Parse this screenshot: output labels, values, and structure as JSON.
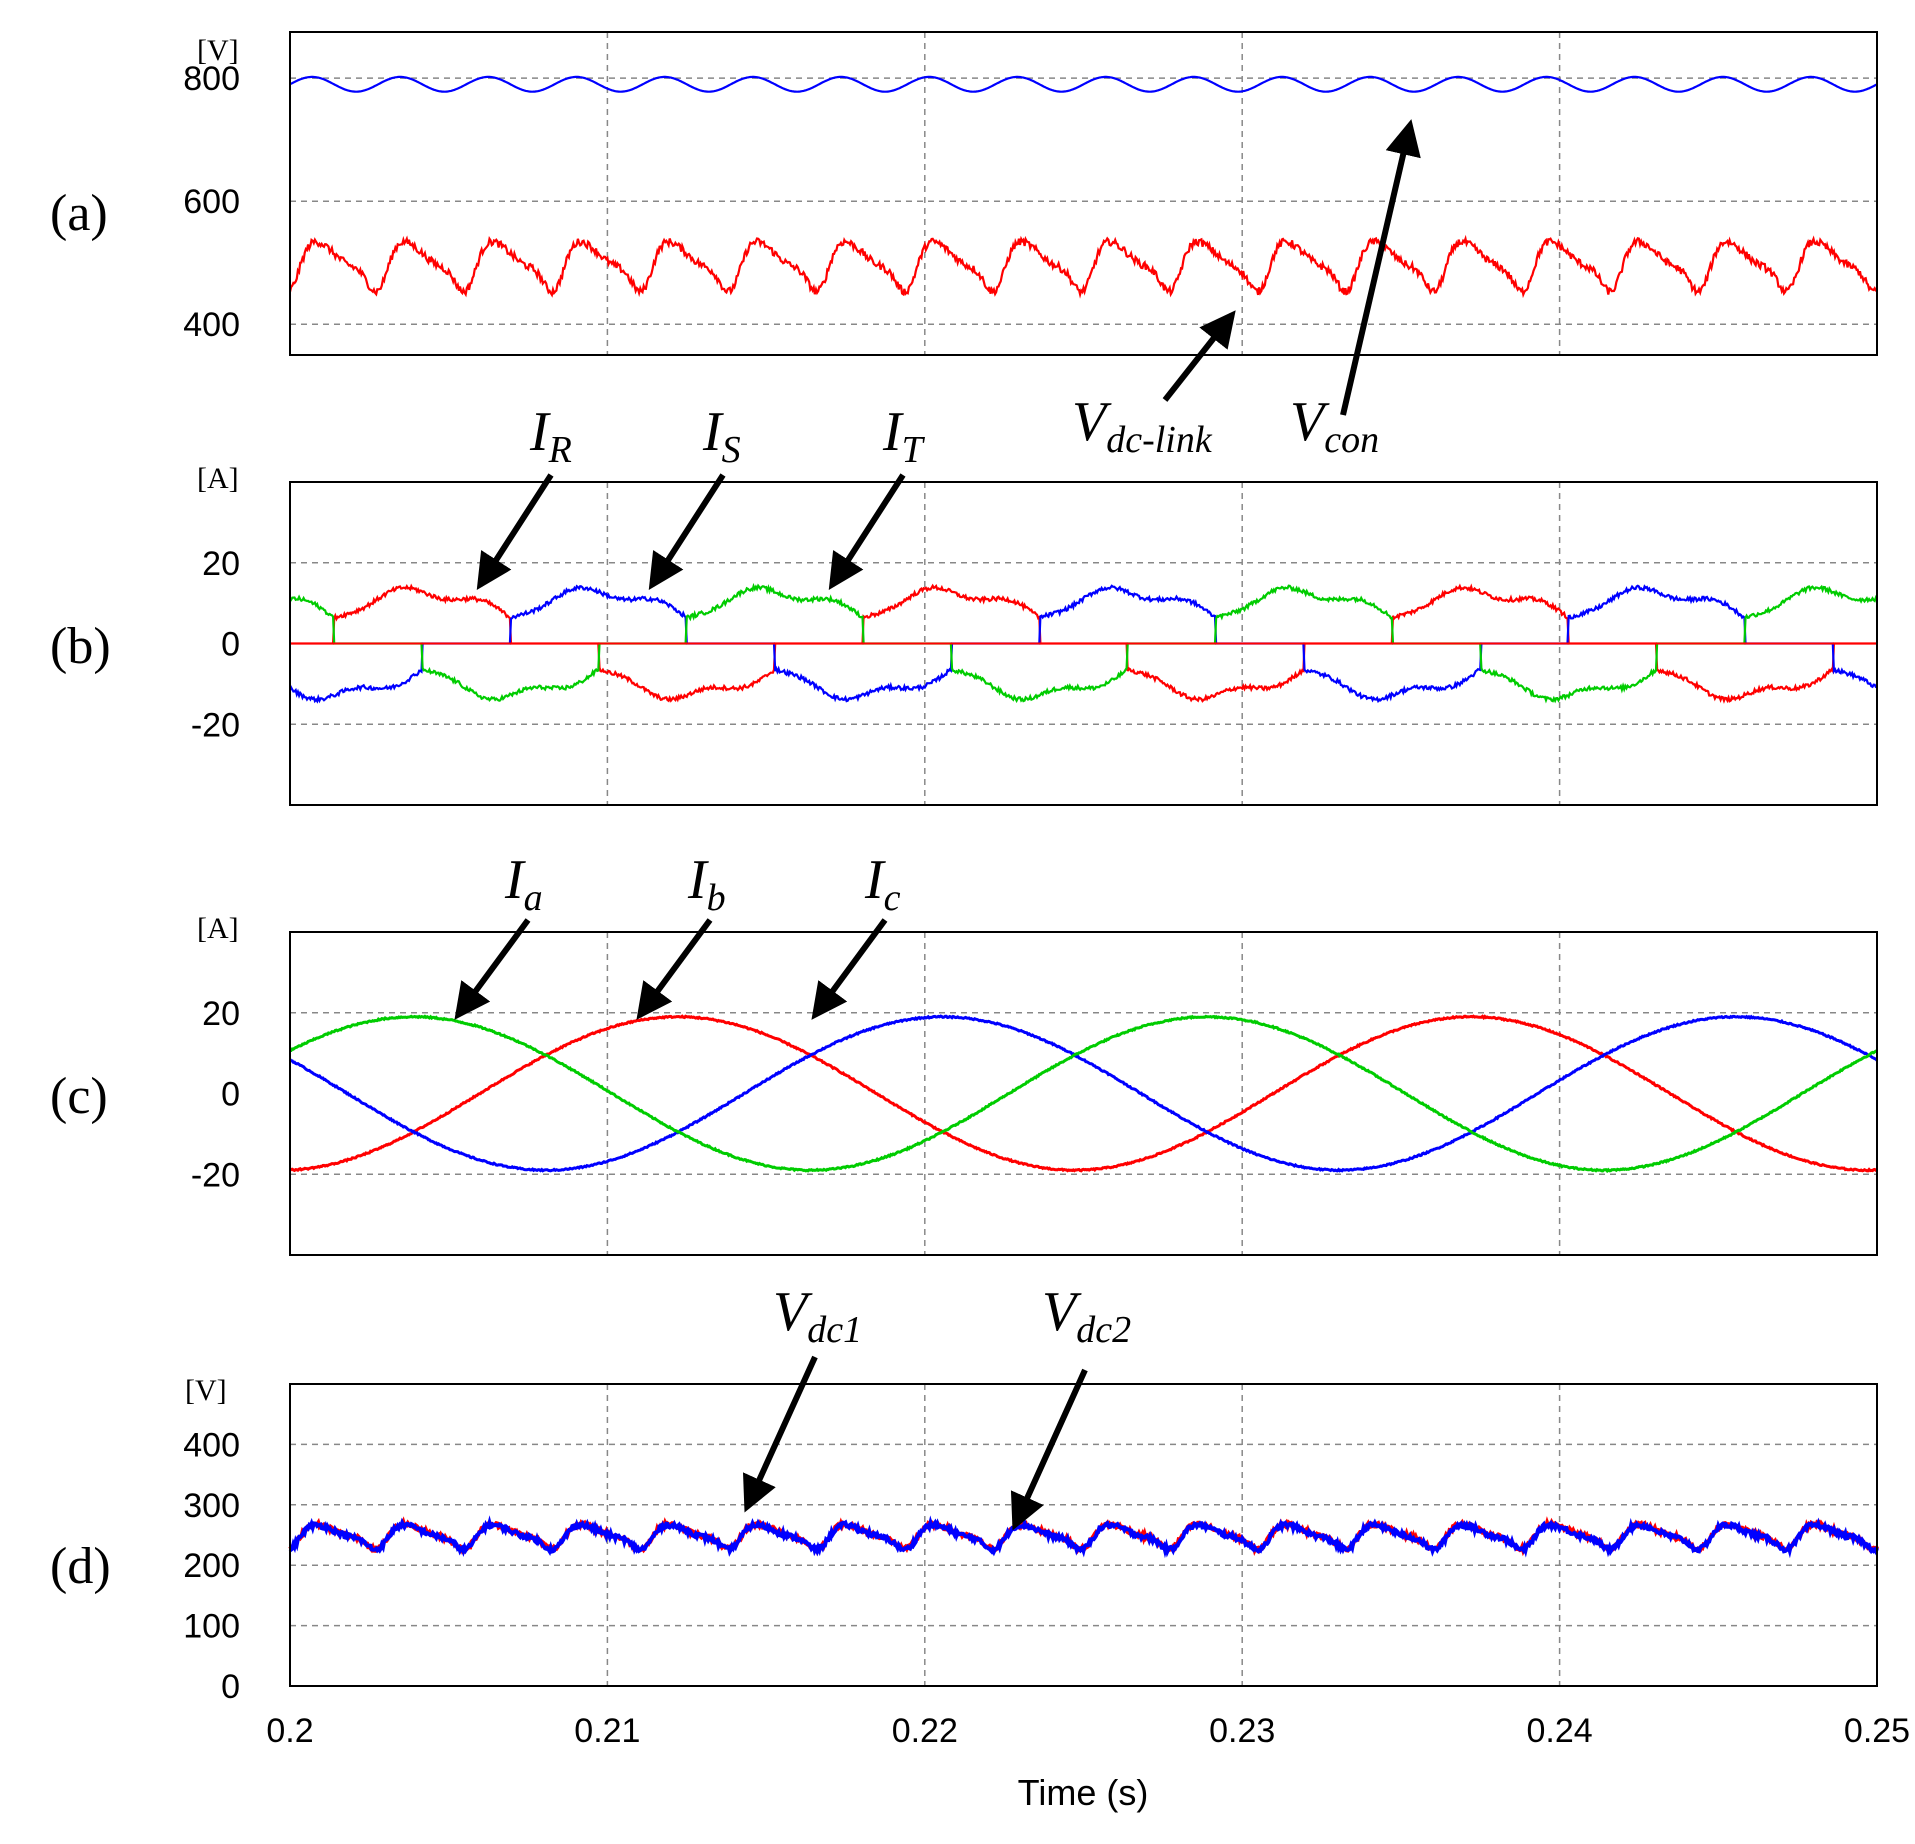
{
  "chart_data": [
    {
      "type": "line",
      "panel": "(a)",
      "unit": "[V]",
      "xlim": [
        0.2,
        0.25
      ],
      "ylim": [
        350,
        875
      ],
      "yticks": [
        400,
        600,
        800
      ],
      "grid": true,
      "series": [
        {
          "name": "Vcon",
          "color": "#0000ff",
          "kind": "dc-ripple",
          "mean": 790,
          "ripple": 12,
          "freq_hz": 360,
          "noise": 0
        },
        {
          "name": "Vdc-link",
          "color": "#ff0000",
          "kind": "dc-dips",
          "mean": 515,
          "ripple": 60,
          "freq_hz": 360,
          "noise": 12
        }
      ],
      "annotations": [
        {
          "text": "V",
          "sub": "dc-link"
        },
        {
          "text": "V",
          "sub": "con"
        }
      ]
    },
    {
      "type": "line",
      "panel": "(b)",
      "unit": "[A]",
      "xlim": [
        0.2,
        0.25
      ],
      "ylim": [
        -40,
        40
      ],
      "yticks": [
        -20,
        0,
        20
      ],
      "grid": true,
      "series": [
        {
          "name": "IR",
          "color": "#ff0000",
          "kind": "chopped",
          "phase_deg": 0,
          "amp": 13.5,
          "freq_hz": 60,
          "noise": 1.0
        },
        {
          "name": "IS",
          "color": "#0000ff",
          "kind": "chopped",
          "phase_deg": -120,
          "amp": 13.5,
          "freq_hz": 60,
          "noise": 1.0
        },
        {
          "name": "IT",
          "color": "#00cc00",
          "kind": "chopped",
          "phase_deg": 120,
          "amp": 13.5,
          "freq_hz": 60,
          "noise": 1.0
        }
      ],
      "annotations": [
        {
          "text": "I",
          "sub": "R"
        },
        {
          "text": "I",
          "sub": "S"
        },
        {
          "text": "I",
          "sub": "T"
        }
      ]
    },
    {
      "type": "line",
      "panel": "(c)",
      "unit": "[A]",
      "xlim": [
        0.2,
        0.25
      ],
      "ylim": [
        -40,
        40
      ],
      "yticks": [
        -20,
        0,
        20
      ],
      "grid": true,
      "series": [
        {
          "name": "Ia",
          "color": "#ff0000",
          "kind": "sine",
          "phase_deg": -3,
          "amp": 19,
          "freq_hz": 40,
          "noise": 0.35
        },
        {
          "name": "Ib",
          "color": "#0000ff",
          "kind": "sine",
          "phase_deg": -123,
          "amp": 19,
          "freq_hz": 40,
          "noise": 0.35
        },
        {
          "name": "Ic",
          "color": "#00cc00",
          "kind": "sine",
          "phase_deg": 117,
          "amp": 19,
          "freq_hz": 40,
          "noise": 0.35
        }
      ],
      "annotations": [
        {
          "text": "I",
          "sub": "a"
        },
        {
          "text": "I",
          "sub": "b"
        },
        {
          "text": "I",
          "sub": "c"
        }
      ]
    },
    {
      "type": "line",
      "panel": "(d)",
      "unit": "[V]",
      "xlim": [
        0.2,
        0.25
      ],
      "ylim": [
        0,
        500
      ],
      "yticks": [
        0,
        100,
        200,
        300,
        400
      ],
      "xticks": [
        0.2,
        0.21,
        0.22,
        0.23,
        0.24,
        0.25
      ],
      "xlabel": "Time (s)",
      "grid": true,
      "series": [
        {
          "name": "Vdc1",
          "color": "#ff0000",
          "kind": "dc-dips",
          "mean": 258,
          "ripple": 30,
          "freq_hz": 360,
          "noise": 7
        },
        {
          "name": "Vdc2",
          "color": "#0000ff",
          "kind": "dc-dips",
          "mean": 257,
          "ripple": 30,
          "freq_hz": 360,
          "noise": 8
        }
      ],
      "annotations": [
        {
          "text": "V",
          "sub": "dc1"
        },
        {
          "text": "V",
          "sub": "dc2"
        }
      ]
    }
  ]
}
